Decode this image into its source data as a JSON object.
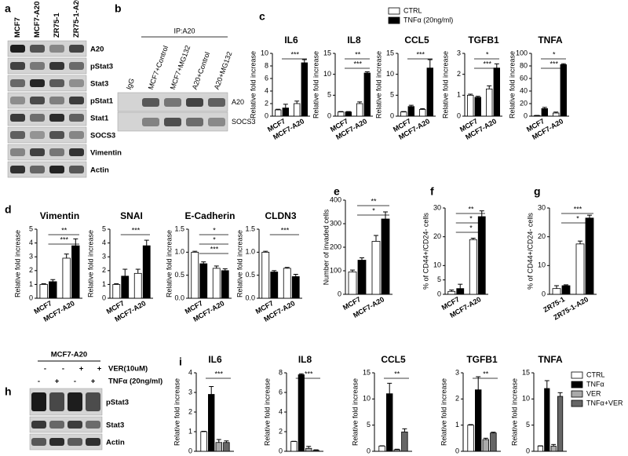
{
  "panels": [
    "a",
    "b",
    "c",
    "d",
    "e",
    "f",
    "g",
    "h",
    "i"
  ],
  "blots": [
    {
      "lanes": [
        "MCF7",
        "MCF7-A20",
        "ZR75-1",
        "ZR75-1-A20"
      ],
      "rows": [
        "A20",
        "pStat3",
        "Stat3",
        "pStat1",
        "Stat1",
        "SOCS3",
        "Vimentin",
        "Actin"
      ]
    },
    {
      "header": "IP:A20",
      "lanes": [
        "IgG",
        "MCF7+Control",
        "MCF7+MG132",
        "A20+Control",
        "A20+MG132"
      ],
      "rows": [
        "A20",
        "SOCS3"
      ]
    },
    {
      "header": "MCF7-A20",
      "treatments": [
        {
          "label": "VER(10uM)",
          "signs": [
            "-",
            "-",
            "+",
            "+"
          ]
        },
        {
          "label": "TNFα (20ng/ml)",
          "signs": [
            "-",
            "+",
            "-",
            "+"
          ]
        }
      ],
      "rows": [
        "pStat3",
        "Stat3",
        "Actin"
      ]
    }
  ],
  "legends": [
    {
      "entries": [
        {
          "name": "CTRL",
          "color": "#ffffff"
        },
        {
          "name": "TNFα (20ng/ml)",
          "color": "#000000"
        }
      ]
    },
    {
      "entries": [
        {
          "name": "CTRL",
          "color": "#ffffff"
        },
        {
          "name": "TNFα",
          "color": "#000000"
        },
        {
          "name": "VER",
          "color": "#aaaaaa"
        },
        {
          "name": "TNFα+VER",
          "color": "#666666"
        }
      ]
    }
  ],
  "chart_data": [
    {
      "type": "bar",
      "title": "IL6",
      "y_label": "Relative fold increase",
      "categories": [
        "MCF7",
        "MCF7-A20"
      ],
      "series": [
        {
          "color": "#ffffff",
          "values": [
            1,
            2
          ],
          "errors": [
            0.1,
            0.4
          ]
        },
        {
          "color": "#000000",
          "values": [
            1.3,
            8.5
          ],
          "errors": [
            0.6,
            0.5
          ]
        }
      ],
      "ylim": [
        0,
        10
      ],
      "yticks": [
        0,
        2,
        4,
        6,
        8,
        10
      ],
      "annotations": [
        "***"
      ]
    },
    {
      "type": "bar",
      "title": "IL8",
      "y_label": "Relative fold increase",
      "categories": [
        "MCF7",
        "MCF7-A20"
      ],
      "series": [
        {
          "color": "#ffffff",
          "values": [
            1,
            3
          ],
          "errors": [
            0.1,
            0.4
          ]
        },
        {
          "color": "#000000",
          "values": [
            1,
            10.3
          ],
          "errors": [
            0.1,
            0.3
          ]
        }
      ],
      "ylim": [
        0,
        15
      ],
      "yticks": [
        0,
        5,
        10,
        15
      ],
      "annotations": [
        "**",
        "***"
      ]
    },
    {
      "type": "bar",
      "title": "CCL5",
      "y_label": "Relative fold increase",
      "categories": [
        "MCF7",
        "MCF7-A20"
      ],
      "series": [
        {
          "color": "#ffffff",
          "values": [
            1,
            1.6
          ],
          "errors": [
            0.1,
            0.2
          ]
        },
        {
          "color": "#000000",
          "values": [
            2.3,
            11.5
          ],
          "errors": [
            0.3,
            2
          ]
        }
      ],
      "ylim": [
        0,
        15
      ],
      "yticks": [
        0,
        5,
        10,
        15
      ],
      "annotations": [
        "***"
      ]
    },
    {
      "type": "bar",
      "title": "TGFB1",
      "y_label": "Relative fold increase",
      "categories": [
        "MCF7",
        "MCF7-A20"
      ],
      "series": [
        {
          "color": "#ffffff",
          "values": [
            1,
            1.3
          ],
          "errors": [
            0.05,
            0.15
          ]
        },
        {
          "color": "#000000",
          "values": [
            0.9,
            2.3
          ],
          "errors": [
            0.05,
            0.2
          ]
        }
      ],
      "ylim": [
        0,
        3
      ],
      "yticks": [
        0,
        1,
        2,
        3
      ],
      "annotations": [
        "*",
        "***"
      ]
    },
    {
      "type": "bar",
      "title": "TNFA",
      "y_label": "Relative fold increase",
      "categories": [
        "MCF7",
        "MCF7-A20"
      ],
      "series": [
        {
          "color": "#ffffff",
          "values": [
            1,
            5
          ],
          "errors": [
            0.2,
            1.5
          ]
        },
        {
          "color": "#000000",
          "values": [
            12,
            82
          ],
          "errors": [
            2,
            1.5
          ]
        }
      ],
      "ylim": [
        0,
        100
      ],
      "yticks": [
        0,
        20,
        40,
        60,
        80,
        100
      ],
      "annotations": [
        "*",
        "***"
      ]
    },
    {
      "type": "bar",
      "title": "Vimentin",
      "y_label": "Relative fold increase",
      "categories": [
        "MCF7",
        "MCF7-A20"
      ],
      "series": [
        {
          "color": "#ffffff",
          "values": [
            1,
            2.9
          ],
          "errors": [
            0.05,
            0.3
          ]
        },
        {
          "color": "#000000",
          "values": [
            1.2,
            3.8
          ],
          "errors": [
            0.15,
            0.5
          ]
        }
      ],
      "ylim": [
        0,
        5
      ],
      "yticks": [
        0,
        1,
        2,
        3,
        4,
        5
      ],
      "annotations": [
        "**",
        "***"
      ]
    },
    {
      "type": "bar",
      "title": "SNAI",
      "y_label": "Relative fold increase",
      "categories": [
        "MCF7",
        "MCF7-A20"
      ],
      "series": [
        {
          "color": "#ffffff",
          "values": [
            1,
            1.8
          ],
          "errors": [
            0.05,
            0.3
          ]
        },
        {
          "color": "#000000",
          "values": [
            1.6,
            3.8
          ],
          "errors": [
            0.5,
            0.4
          ]
        }
      ],
      "ylim": [
        0,
        5
      ],
      "yticks": [
        0,
        1,
        2,
        3,
        4,
        5
      ],
      "annotations": [
        "***"
      ]
    },
    {
      "type": "bar",
      "title": "E-Cadherin",
      "y_label": "Relative fold increase",
      "categories": [
        "MCF7",
        "MCF7-A20"
      ],
      "series": [
        {
          "color": "#ffffff",
          "values": [
            1,
            0.65
          ],
          "errors": [
            0.02,
            0.05
          ]
        },
        {
          "color": "#000000",
          "values": [
            0.75,
            0.6
          ],
          "errors": [
            0.04,
            0.04
          ]
        }
      ],
      "ylim": [
        0,
        1.5
      ],
      "yticks": [
        {
          "value": 0,
          "label": "0.0"
        },
        {
          "value": 0.5,
          "label": "0.5"
        },
        {
          "value": 1,
          "label": "1.0"
        },
        {
          "value": 1.5,
          "label": "1.5"
        }
      ],
      "annotations": [
        "*",
        "*",
        "***"
      ]
    },
    {
      "type": "bar",
      "title": "CLDN3",
      "y_label": "Relative fold increase",
      "categories": [
        "MCF7",
        "MCF7-A20"
      ],
      "series": [
        {
          "color": "#ffffff",
          "values": [
            1,
            0.65
          ],
          "errors": [
            0.02,
            0.02
          ]
        },
        {
          "color": "#000000",
          "values": [
            0.57,
            0.47
          ],
          "errors": [
            0.03,
            0.05
          ]
        }
      ],
      "ylim": [
        0,
        1.5
      ],
      "yticks": [
        {
          "value": 0,
          "label": "0.0"
        },
        {
          "value": 0.5,
          "label": "0.5"
        },
        {
          "value": 1,
          "label": "1.0"
        },
        {
          "value": 1.5,
          "label": "1.5"
        }
      ],
      "annotations": [
        "***"
      ]
    },
    {
      "type": "bar",
      "y_label": "Number of invaded cells",
      "categories": [
        "MCF7",
        "MCF7-A20"
      ],
      "series": [
        {
          "color": "#ffffff",
          "values": [
            95,
            225
          ],
          "errors": [
            8,
            25
          ]
        },
        {
          "color": "#000000",
          "values": [
            145,
            320
          ],
          "errors": [
            10,
            30
          ]
        }
      ],
      "ylim": [
        0,
        400
      ],
      "yticks": [
        0,
        100,
        200,
        300,
        400
      ],
      "annotations": [
        "**",
        "*"
      ]
    },
    {
      "type": "bar",
      "y_label": "% of CD44+/CD24- cells",
      "categories": [
        "MCF7",
        "MCF7-A20"
      ],
      "series": [
        {
          "color": "#ffffff",
          "values": [
            1,
            19
          ],
          "errors": [
            0.5,
            0.5
          ]
        },
        {
          "color": "#000000",
          "values": [
            2,
            27
          ],
          "errors": [
            1.5,
            2
          ]
        }
      ],
      "ylim": [
        0,
        30
      ],
      "yticks": [
        0,
        5,
        10,
        20,
        30
      ],
      "annotations": [
        "**",
        "*",
        "*"
      ]
    },
    {
      "type": "bar",
      "y_label": "% of CD44+/CD24- cells",
      "categories": [
        "ZR75-1",
        "ZR75-1-A20"
      ],
      "series": [
        {
          "color": "#ffffff",
          "values": [
            2,
            17.5
          ],
          "errors": [
            1,
            1
          ]
        },
        {
          "color": "#000000",
          "values": [
            3,
            26.5
          ],
          "errors": [
            0.3,
            1
          ]
        }
      ],
      "ylim": [
        0,
        30
      ],
      "yticks": [
        0,
        10,
        20,
        30
      ],
      "annotations": [
        "***",
        "*"
      ]
    },
    {
      "type": "bar",
      "title": "IL6",
      "y_label": "Relative fold increase",
      "categories": [
        null
      ],
      "series": [
        {
          "color": "#ffffff",
          "values": [
            1
          ],
          "errors": [
            0.02
          ]
        },
        {
          "color": "#000000",
          "values": [
            2.9
          ],
          "errors": [
            0.4
          ]
        },
        {
          "color": "#aaaaaa",
          "values": [
            0.45
          ],
          "errors": [
            0.15
          ]
        },
        {
          "color": "#666666",
          "values": [
            0.45
          ],
          "errors": [
            0.08
          ]
        }
      ],
      "ylim": [
        0,
        4
      ],
      "yticks": [
        0,
        1,
        2,
        3,
        4
      ],
      "annotations": [
        "***"
      ]
    },
    {
      "type": "bar",
      "title": "IL8",
      "y_label": "Relative fold increase",
      "categories": [
        null
      ],
      "series": [
        {
          "color": "#ffffff",
          "values": [
            1
          ],
          "errors": [
            0.02
          ]
        },
        {
          "color": "#000000",
          "values": [
            7.8
          ],
          "errors": [
            0.1
          ]
        },
        {
          "color": "#aaaaaa",
          "values": [
            0.3
          ],
          "errors": [
            0.2
          ]
        },
        {
          "color": "#666666",
          "values": [
            0.1
          ],
          "errors": [
            0.05
          ]
        }
      ],
      "ylim": [
        0,
        8
      ],
      "yticks": [
        0,
        2,
        4,
        6,
        8
      ],
      "annotations": [
        "***"
      ]
    },
    {
      "type": "bar",
      "title": "CCL5",
      "y_label": "Relative fold increase",
      "categories": [
        null
      ],
      "series": [
        {
          "color": "#ffffff",
          "values": [
            1
          ],
          "errors": [
            0.05
          ]
        },
        {
          "color": "#000000",
          "values": [
            11
          ],
          "errors": [
            2
          ]
        },
        {
          "color": "#aaaaaa",
          "values": [
            0.3
          ],
          "errors": [
            0.1
          ]
        },
        {
          "color": "#666666",
          "values": [
            3.7
          ],
          "errors": [
            0.6
          ]
        }
      ],
      "ylim": [
        0,
        15
      ],
      "yticks": [
        0,
        5,
        10,
        15
      ],
      "annotations": [
        "**"
      ]
    },
    {
      "type": "bar",
      "title": "TGFB1",
      "y_label": "Relative fold increase",
      "categories": [
        null
      ],
      "series": [
        {
          "color": "#ffffff",
          "values": [
            1
          ],
          "errors": [
            0.02
          ]
        },
        {
          "color": "#000000",
          "values": [
            2.35
          ],
          "errors": [
            0.5
          ]
        },
        {
          "color": "#aaaaaa",
          "values": [
            0.45
          ],
          "errors": [
            0.05
          ]
        },
        {
          "color": "#666666",
          "values": [
            0.7
          ],
          "errors": [
            0.03
          ]
        }
      ],
      "ylim": [
        0,
        3
      ],
      "yticks": [
        0,
        1,
        2,
        3
      ],
      "annotations": [
        "**"
      ]
    },
    {
      "type": "bar",
      "title": "TNFA",
      "y_label": "Relative fold increase",
      "categories": [
        null
      ],
      "series": [
        {
          "color": "#ffffff",
          "values": [
            1
          ],
          "errors": [
            0.05
          ]
        },
        {
          "color": "#000000",
          "values": [
            12
          ],
          "errors": [
            1.5
          ]
        },
        {
          "color": "#aaaaaa",
          "values": [
            1
          ],
          "errors": [
            0.3
          ]
        },
        {
          "color": "#666666",
          "values": [
            10.5
          ],
          "errors": [
            0.7
          ]
        }
      ],
      "ylim": [
        0,
        15
      ],
      "yticks": [
        0,
        5,
        10,
        15
      ],
      "annotations": []
    }
  ]
}
